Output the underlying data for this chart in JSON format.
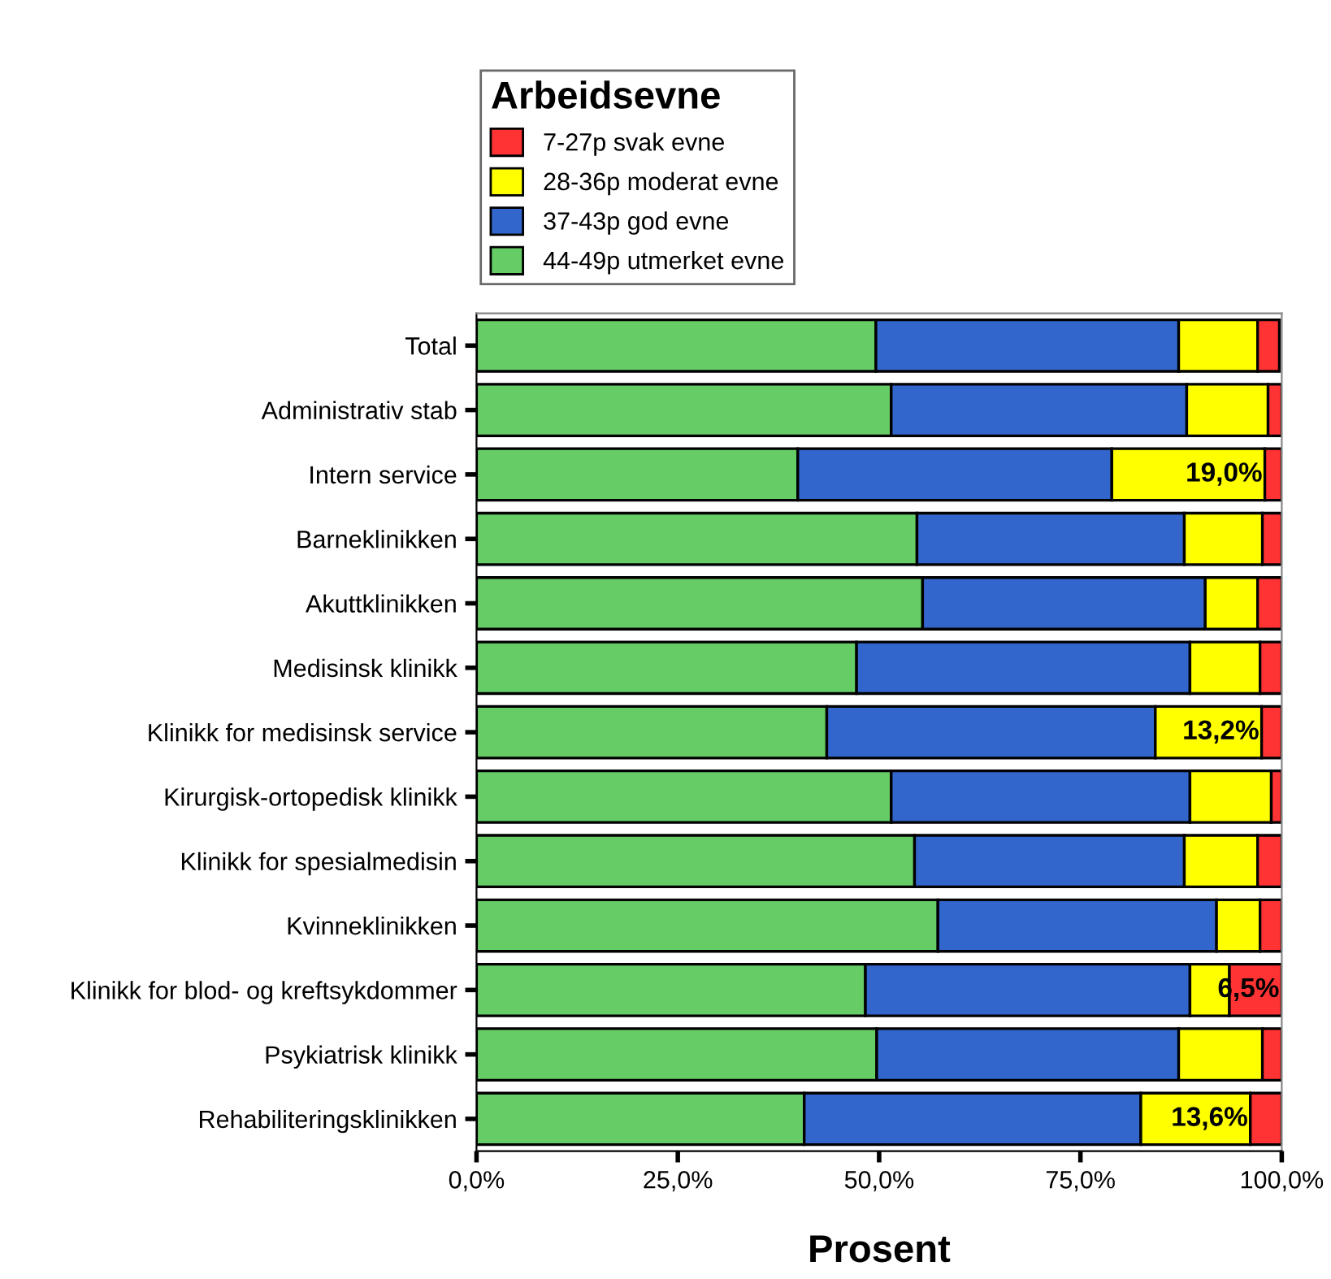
{
  "chart_data": {
    "type": "bar",
    "orientation": "horizontal",
    "stacked": true,
    "xlabel": "Prosent",
    "legend_title": "Arbeidsevne",
    "legend": "top",
    "grid": false,
    "categories": [
      "Total",
      "Administrativ stab",
      "Intern service",
      "Barneklinikken",
      "Akuttklinikken",
      "Medisinsk klinikk",
      "Klinikk for medisinsk service",
      "Kirurgisk-ortopedisk klinikk",
      "Klinikk for spesialmedisin",
      "Kvinneklinikken",
      "Klinikk for blod- og kreftsykdommer",
      "Psykiatrisk klinikk",
      "Rehabiliteringsklinikken"
    ],
    "series": [
      {
        "name": "44-49p utmerket evne",
        "color": "#66cc66",
        "values": [
          49.6,
          51.5,
          39.9,
          54.7,
          55.4,
          47.2,
          43.5,
          51.5,
          54.4,
          57.3,
          48.3,
          49.7,
          40.7
        ]
      },
      {
        "name": "37-43p god evne",
        "color": "#3366cc",
        "values": [
          37.6,
          36.7,
          39.0,
          33.2,
          35.1,
          41.4,
          40.8,
          37.1,
          33.5,
          34.6,
          40.3,
          37.5,
          41.8
        ]
      },
      {
        "name": "28-36p moderat evne",
        "color": "#ffff00",
        "values": [
          9.8,
          10.1,
          19.0,
          9.7,
          6.5,
          8.7,
          13.2,
          10.1,
          9.1,
          5.4,
          4.9,
          10.4,
          13.6
        ],
        "value_labels": [
          null,
          null,
          "19,0%",
          null,
          null,
          null,
          "13,2%",
          null,
          null,
          null,
          null,
          null,
          "13,6%"
        ]
      },
      {
        "name": "7-27p svak evne",
        "color": "#ff3333",
        "values": [
          2.7,
          1.7,
          2.1,
          2.4,
          3.0,
          2.7,
          2.5,
          1.3,
          3.0,
          2.7,
          6.5,
          2.4,
          3.9
        ],
        "value_labels": [
          null,
          null,
          null,
          null,
          null,
          null,
          null,
          null,
          null,
          null,
          "6,5%",
          null,
          null
        ]
      }
    ],
    "xlim": [
      0,
      100
    ],
    "xticks": [
      {
        "value": 0,
        "label": "0,0%"
      },
      {
        "value": 25,
        "label": "25,0%"
      },
      {
        "value": 50,
        "label": "50,0%"
      },
      {
        "value": 75,
        "label": "75,0%"
      },
      {
        "value": 100,
        "label": "100,0%"
      }
    ]
  }
}
